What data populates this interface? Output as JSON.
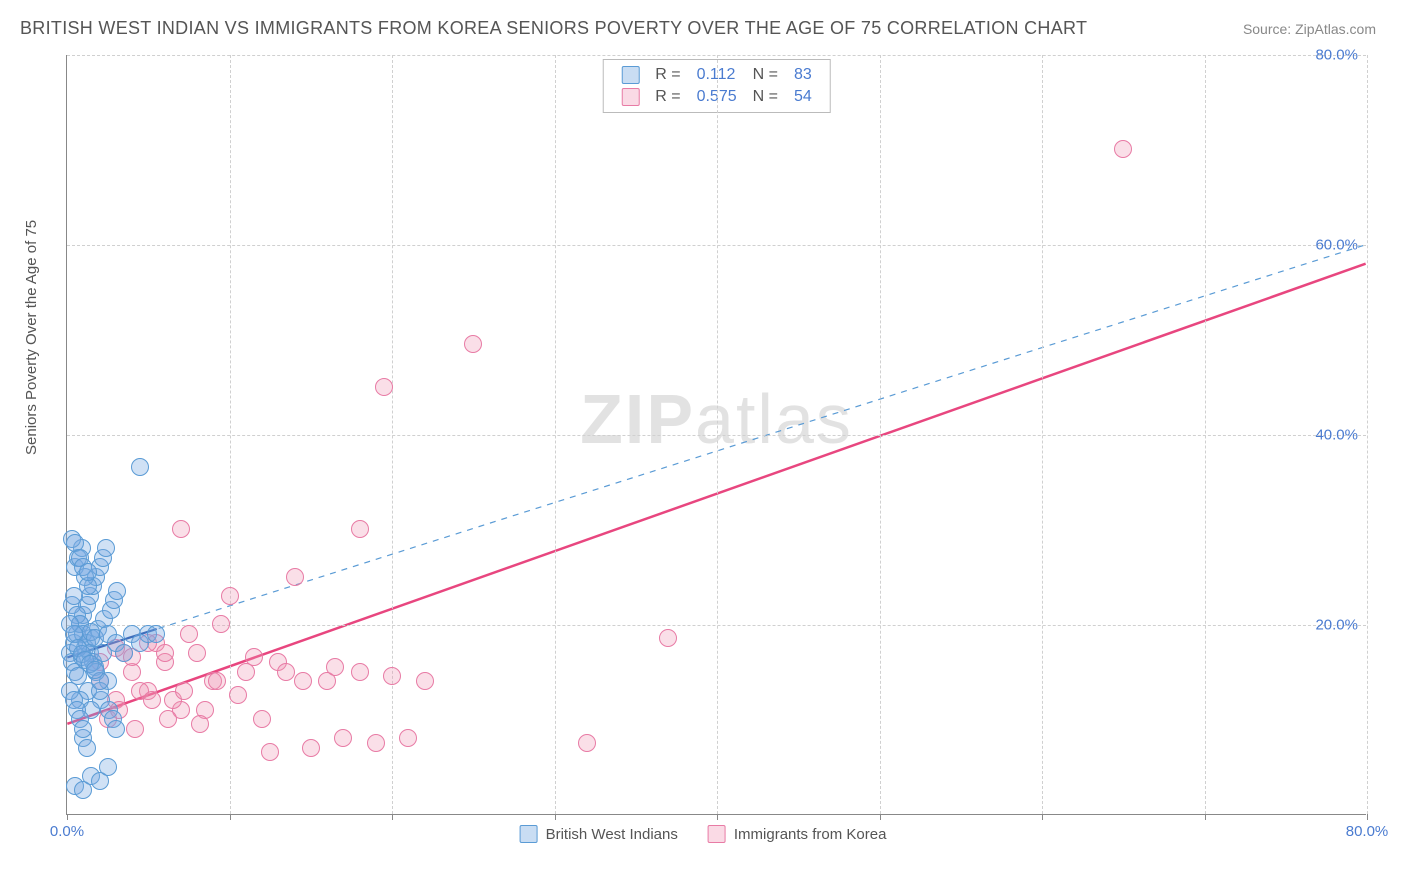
{
  "title": "BRITISH WEST INDIAN VS IMMIGRANTS FROM KOREA SENIORS POVERTY OVER THE AGE OF 75 CORRELATION CHART",
  "source": "Source: ZipAtlas.com",
  "y_axis_label": "Seniors Poverty Over the Age of 75",
  "watermark_bold": "ZIP",
  "watermark_light": "atlas",
  "chart": {
    "type": "scatter",
    "xlim": [
      0,
      80
    ],
    "ylim": [
      0,
      80
    ],
    "x_ticks": [
      0,
      10,
      20,
      30,
      40,
      50,
      60,
      70,
      80
    ],
    "y_ticks": [
      20,
      40,
      60,
      80
    ],
    "x_tick_labels": {
      "0": "0.0%",
      "80": "80.0%"
    },
    "y_tick_labels": {
      "20": "20.0%",
      "40": "40.0%",
      "60": "60.0%",
      "80": "80.0%"
    },
    "grid_color": "#d0d0d0",
    "axis_color": "#888888",
    "label_color": "#4a7bd0",
    "background_color": "#ffffff",
    "point_radius": 9,
    "series_blue": {
      "name": "British West Indians",
      "fill": "rgba(120,170,225,0.35)",
      "stroke": "#5a9bd5",
      "trend_short": {
        "x1": 0,
        "y1": 16.5,
        "x2": 5.5,
        "y2": 19.5,
        "color": "#1f4ea8",
        "width": 2.2,
        "dash": "none"
      },
      "trend_dashed": {
        "x1": 0,
        "y1": 16.5,
        "x2": 80,
        "y2": 60,
        "color": "#5a9bd5",
        "width": 1.2,
        "dash": "6,6"
      },
      "points": [
        [
          0.2,
          17
        ],
        [
          0.3,
          16
        ],
        [
          0.4,
          18
        ],
        [
          0.5,
          15
        ],
        [
          0.6,
          19
        ],
        [
          0.7,
          14.5
        ],
        [
          0.8,
          20
        ],
        [
          0.9,
          16.5
        ],
        [
          1.0,
          21
        ],
        [
          1.1,
          17.5
        ],
        [
          1.2,
          22
        ],
        [
          1.3,
          13
        ],
        [
          1.4,
          23
        ],
        [
          1.5,
          18.5
        ],
        [
          1.6,
          24
        ],
        [
          1.7,
          15.5
        ],
        [
          1.8,
          25
        ],
        [
          1.9,
          19.5
        ],
        [
          2.0,
          26
        ],
        [
          2.1,
          12
        ],
        [
          2.2,
          27
        ],
        [
          2.3,
          20.5
        ],
        [
          2.4,
          28
        ],
        [
          2.5,
          14
        ],
        [
          2.6,
          11
        ],
        [
          2.7,
          21.5
        ],
        [
          2.8,
          10
        ],
        [
          2.9,
          22.5
        ],
        [
          3.0,
          9
        ],
        [
          3.1,
          23.5
        ],
        [
          1.0,
          8
        ],
        [
          1.2,
          7
        ],
        [
          0.8,
          12
        ],
        [
          1.5,
          11
        ],
        [
          2.0,
          13
        ],
        [
          0.5,
          26
        ],
        [
          0.7,
          27
        ],
        [
          0.9,
          28
        ],
        [
          1.1,
          25
        ],
        [
          1.3,
          24
        ],
        [
          0.3,
          22
        ],
        [
          0.4,
          23
        ],
        [
          0.6,
          21
        ],
        [
          0.8,
          20
        ],
        [
          1.0,
          19
        ],
        [
          1.2,
          18
        ],
        [
          1.4,
          17
        ],
        [
          1.6,
          16
        ],
        [
          1.8,
          15
        ],
        [
          2.0,
          14
        ],
        [
          0.2,
          13
        ],
        [
          0.4,
          12
        ],
        [
          0.6,
          11
        ],
        [
          0.8,
          10
        ],
        [
          1.0,
          9
        ],
        [
          1.5,
          19.2
        ],
        [
          1.7,
          18.5
        ],
        [
          2.2,
          17
        ],
        [
          2.5,
          19
        ],
        [
          3.0,
          18
        ],
        [
          3.5,
          17
        ],
        [
          4.0,
          19
        ],
        [
          4.5,
          18
        ],
        [
          5.0,
          19
        ],
        [
          5.5,
          19
        ],
        [
          0.5,
          3
        ],
        [
          1.0,
          2.5
        ],
        [
          1.5,
          4
        ],
        [
          2.0,
          3.5
        ],
        [
          2.5,
          5
        ],
        [
          4.5,
          36.5
        ],
        [
          0.3,
          29
        ],
        [
          0.5,
          28.5
        ],
        [
          0.8,
          27
        ],
        [
          1.0,
          26
        ],
        [
          1.3,
          25.5
        ],
        [
          0.2,
          20
        ],
        [
          0.4,
          19
        ],
        [
          0.7,
          17.5
        ],
        [
          0.9,
          16.8
        ],
        [
          1.1,
          16.2
        ],
        [
          1.4,
          15.8
        ],
        [
          1.7,
          15.2
        ]
      ]
    },
    "series_pink": {
      "name": "Immigrants from Korea",
      "fill": "rgba(240,150,180,0.3)",
      "stroke": "#e87ba5",
      "trend_solid": {
        "x1": 0,
        "y1": 9.5,
        "x2": 80,
        "y2": 58,
        "color": "#e8467f",
        "width": 2.5,
        "dash": "none"
      },
      "points": [
        [
          2,
          14
        ],
        [
          3,
          12
        ],
        [
          4,
          15
        ],
        [
          5,
          13
        ],
        [
          6,
          16
        ],
        [
          7,
          11
        ],
        [
          8,
          17
        ],
        [
          9,
          14
        ],
        [
          10,
          23
        ],
        [
          11,
          15
        ],
        [
          12,
          10
        ],
        [
          13,
          16
        ],
        [
          14,
          25
        ],
        [
          15,
          7
        ],
        [
          16,
          14
        ],
        [
          17,
          8
        ],
        [
          18,
          15
        ],
        [
          19,
          7.5
        ],
        [
          20,
          14.5
        ],
        [
          21,
          8
        ],
        [
          7,
          30
        ],
        [
          18,
          30
        ],
        [
          19.5,
          45
        ],
        [
          25,
          49.5
        ],
        [
          32,
          7.5
        ],
        [
          37,
          18.5
        ],
        [
          65,
          70
        ],
        [
          3.5,
          17
        ],
        [
          4.5,
          13
        ],
        [
          5.5,
          18
        ],
        [
          6.5,
          12
        ],
        [
          7.5,
          19
        ],
        [
          8.5,
          11
        ],
        [
          9.5,
          20
        ],
        [
          10.5,
          12.5
        ],
        [
          2.5,
          10
        ],
        [
          3.2,
          11
        ],
        [
          4.2,
          9
        ],
        [
          5.2,
          12
        ],
        [
          6.2,
          10
        ],
        [
          7.2,
          13
        ],
        [
          8.2,
          9.5
        ],
        [
          9.2,
          14
        ],
        [
          12.5,
          6.5
        ],
        [
          13.5,
          15
        ],
        [
          2,
          16
        ],
        [
          3,
          17.5
        ],
        [
          4,
          16.5
        ],
        [
          5,
          18
        ],
        [
          6,
          17
        ],
        [
          11.5,
          16.5
        ],
        [
          14.5,
          14
        ],
        [
          16.5,
          15.5
        ],
        [
          22,
          14
        ]
      ]
    }
  },
  "correlation_box": {
    "rows": [
      {
        "swatch": "blue",
        "r_label": "R =",
        "r_value": "0.112",
        "n_label": "N =",
        "n_value": "83"
      },
      {
        "swatch": "pink",
        "r_label": "R =",
        "r_value": "0.575",
        "n_label": "N =",
        "n_value": "54"
      }
    ]
  },
  "bottom_legend": [
    {
      "swatch": "blue",
      "label": "British West Indians"
    },
    {
      "swatch": "pink",
      "label": "Immigrants from Korea"
    }
  ]
}
